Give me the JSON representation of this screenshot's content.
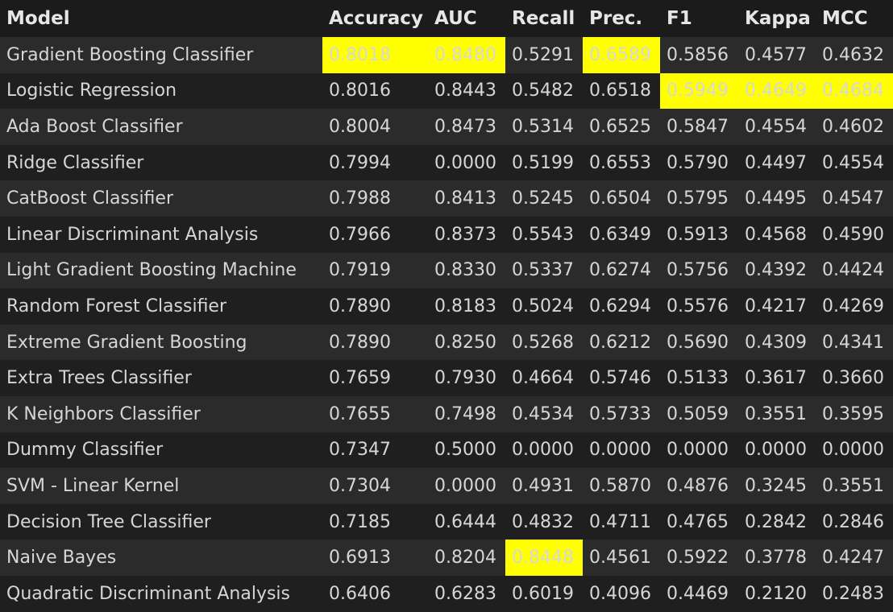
{
  "table": {
    "headers": [
      "Model",
      "Accuracy",
      "AUC",
      "Recall",
      "Prec.",
      "F1",
      "Kappa",
      "MCC"
    ],
    "rows": [
      {
        "model": "Gradient Boosting Classifier",
        "values": [
          "0.8018",
          "0.8480",
          "0.5291",
          "0.6589",
          "0.5856",
          "0.4577",
          "0.4632"
        ],
        "highlight": [
          0,
          1,
          3
        ]
      },
      {
        "model": "Logistic Regression",
        "values": [
          "0.8016",
          "0.8443",
          "0.5482",
          "0.6518",
          "0.5949",
          "0.4649",
          "0.4684"
        ],
        "highlight": [
          4,
          5,
          6
        ]
      },
      {
        "model": "Ada Boost Classifier",
        "values": [
          "0.8004",
          "0.8473",
          "0.5314",
          "0.6525",
          "0.5847",
          "0.4554",
          "0.4602"
        ],
        "highlight": []
      },
      {
        "model": "Ridge Classifier",
        "values": [
          "0.7994",
          "0.0000",
          "0.5199",
          "0.6553",
          "0.5790",
          "0.4497",
          "0.4554"
        ],
        "highlight": []
      },
      {
        "model": "CatBoost Classifier",
        "values": [
          "0.7988",
          "0.8413",
          "0.5245",
          "0.6504",
          "0.5795",
          "0.4495",
          "0.4547"
        ],
        "highlight": []
      },
      {
        "model": "Linear Discriminant Analysis",
        "values": [
          "0.7966",
          "0.8373",
          "0.5543",
          "0.6349",
          "0.5913",
          "0.4568",
          "0.4590"
        ],
        "highlight": []
      },
      {
        "model": "Light Gradient Boosting Machine",
        "values": [
          "0.7919",
          "0.8330",
          "0.5337",
          "0.6274",
          "0.5756",
          "0.4392",
          "0.4424"
        ],
        "highlight": []
      },
      {
        "model": "Random Forest Classifier",
        "values": [
          "0.7890",
          "0.8183",
          "0.5024",
          "0.6294",
          "0.5576",
          "0.4217",
          "0.4269"
        ],
        "highlight": []
      },
      {
        "model": "Extreme Gradient Boosting",
        "values": [
          "0.7890",
          "0.8250",
          "0.5268",
          "0.6212",
          "0.5690",
          "0.4309",
          "0.4341"
        ],
        "highlight": []
      },
      {
        "model": "Extra Trees Classifier",
        "values": [
          "0.7659",
          "0.7930",
          "0.4664",
          "0.5746",
          "0.5133",
          "0.3617",
          "0.3660"
        ],
        "highlight": []
      },
      {
        "model": "K Neighbors Classifier",
        "values": [
          "0.7655",
          "0.7498",
          "0.4534",
          "0.5733",
          "0.5059",
          "0.3551",
          "0.3595"
        ],
        "highlight": []
      },
      {
        "model": "Dummy Classifier",
        "values": [
          "0.7347",
          "0.5000",
          "0.0000",
          "0.0000",
          "0.0000",
          "0.0000",
          "0.0000"
        ],
        "highlight": []
      },
      {
        "model": "SVM - Linear Kernel",
        "values": [
          "0.7304",
          "0.0000",
          "0.4931",
          "0.5870",
          "0.4876",
          "0.3245",
          "0.3551"
        ],
        "highlight": []
      },
      {
        "model": "Decision Tree Classifier",
        "values": [
          "0.7185",
          "0.6444",
          "0.4832",
          "0.4711",
          "0.4765",
          "0.2842",
          "0.2846"
        ],
        "highlight": []
      },
      {
        "model": "Naive Bayes",
        "values": [
          "0.6913",
          "0.8204",
          "0.8448",
          "0.4561",
          "0.5922",
          "0.3778",
          "0.4247"
        ],
        "highlight": [
          2
        ]
      },
      {
        "model": "Quadratic Discriminant Analysis",
        "values": [
          "0.6406",
          "0.6283",
          "0.6019",
          "0.4096",
          "0.4469",
          "0.2120",
          "0.2483"
        ],
        "highlight": []
      }
    ]
  },
  "colors": {
    "background": "#1b1b1b",
    "row_odd": "#2b2b2b",
    "row_even": "#1f1f1f",
    "highlight": "#ffff00",
    "text": "#d6d6d6"
  }
}
